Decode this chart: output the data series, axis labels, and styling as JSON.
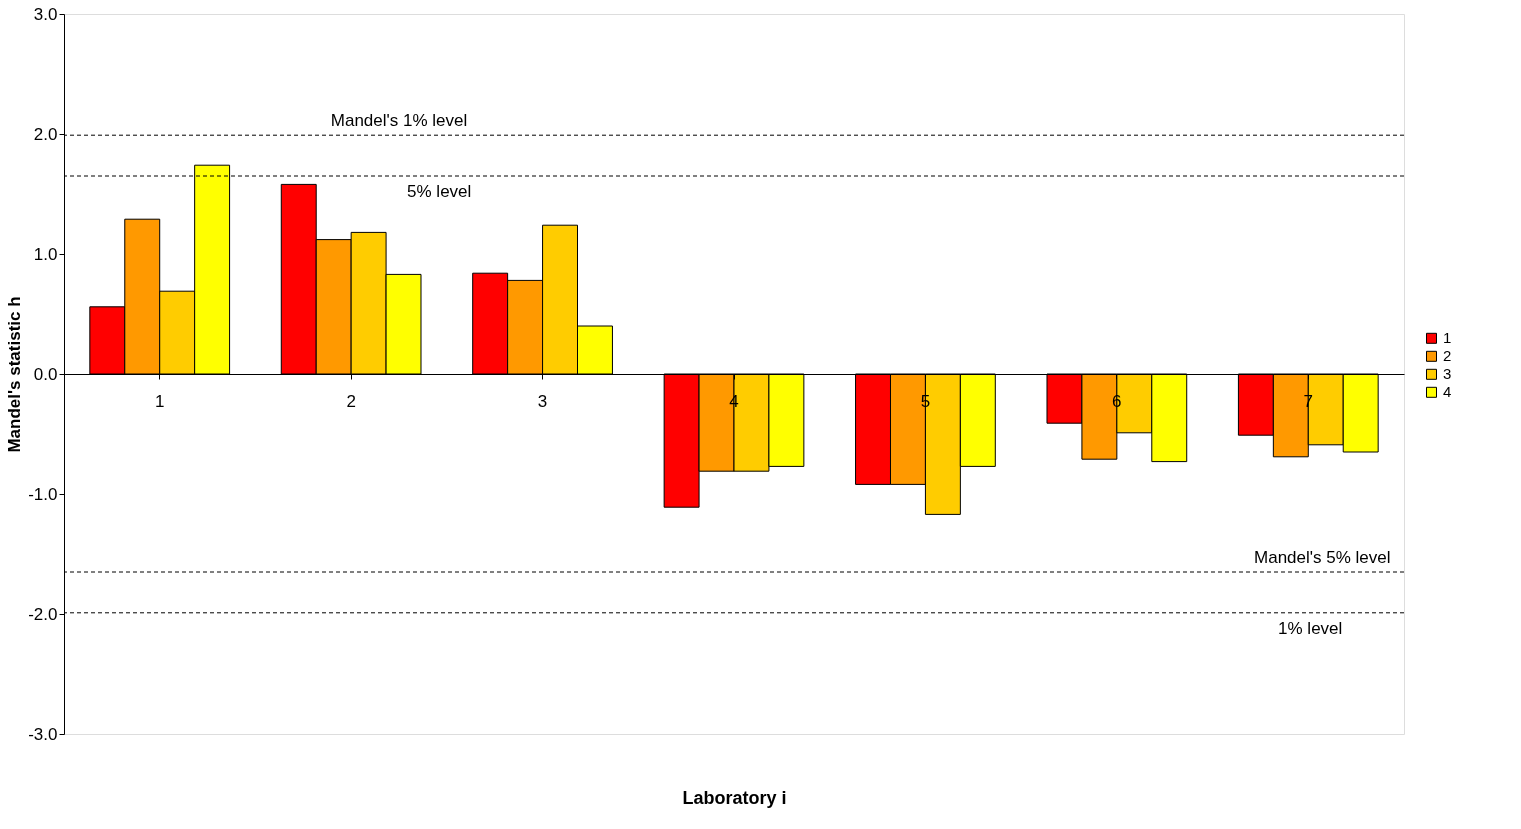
{
  "chart_data": {
    "type": "bar",
    "xlabel": "Laboratory i",
    "ylabel": "Mandel's statistic h",
    "categories": [
      "1",
      "2",
      "3",
      "4",
      "5",
      "6",
      "7"
    ],
    "series": [
      {
        "name": "1",
        "color": "#ff0000",
        "values": [
          0.56,
          1.58,
          0.84,
          -1.11,
          -0.92,
          -0.41,
          -0.51
        ]
      },
      {
        "name": "2",
        "color": "#ff9900",
        "values": [
          1.29,
          1.12,
          0.78,
          -0.81,
          -0.92,
          -0.71,
          -0.69
        ]
      },
      {
        "name": "3",
        "color": "#ffcc00",
        "values": [
          0.69,
          1.18,
          1.24,
          -0.81,
          -1.17,
          -0.49,
          -0.59
        ]
      },
      {
        "name": "4",
        "color": "#ffff00",
        "values": [
          1.74,
          0.83,
          0.4,
          -0.77,
          -0.77,
          -0.73,
          -0.65
        ]
      }
    ],
    "ylim": [
      -3,
      3
    ],
    "yticks": [
      {
        "value": -3,
        "label": "-3.0"
      },
      {
        "value": -2,
        "label": "-2.0"
      },
      {
        "value": -1,
        "label": "-1.0"
      },
      {
        "value": 0,
        "label": "0.0"
      },
      {
        "value": 1,
        "label": "1.0"
      },
      {
        "value": 2,
        "label": "2.0"
      },
      {
        "value": 3,
        "label": "3.0"
      }
    ],
    "ref_lines": [
      {
        "axis": "y",
        "value": 1.99,
        "label": "Mandel's 1% level",
        "line_style": "dashed",
        "color": "#000000"
      },
      {
        "axis": "y",
        "value": 1.65,
        "label": "5% level",
        "line_style": "dashed",
        "color": "#000000"
      },
      {
        "axis": "y",
        "value": -1.65,
        "label": "Mandel's 5% level",
        "line_style": "dashed",
        "color": "#000000"
      },
      {
        "axis": "y",
        "value": -1.99,
        "label": "1% level",
        "line_style": "dashed",
        "color": "#000000"
      }
    ],
    "legend": "right",
    "grid": false
  }
}
